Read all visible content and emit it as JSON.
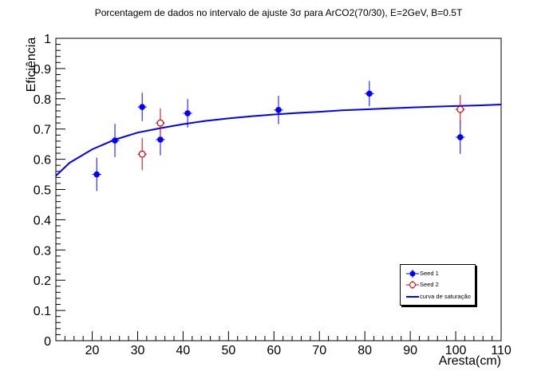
{
  "chart_data": {
    "type": "scatter",
    "title": "Porcentagem de dados no intervalo de ajuste 3σ para ArCO2(70/30), E=2GeV, B=0.5T",
    "xlabel": "Aresta(cm)",
    "ylabel": "Eficiência",
    "xlim": [
      12,
      110
    ],
    "ylim": [
      0,
      1
    ],
    "xticks": [
      20,
      30,
      40,
      50,
      60,
      70,
      80,
      90,
      100,
      110
    ],
    "yticks": [
      0,
      0.1,
      0.2,
      0.3,
      0.4,
      0.5,
      0.6,
      0.7,
      0.8,
      0.9,
      1
    ],
    "legend_position": "bottom-right",
    "series": [
      {
        "name": "Seed 1",
        "color": "#0000ff",
        "marker": "filled-circle",
        "points": [
          {
            "x": 21,
            "y": 0.55,
            "xerr": 1,
            "yerr": 0.055
          },
          {
            "x": 25,
            "y": 0.662,
            "xerr": 1,
            "yerr": 0.055
          },
          {
            "x": 31,
            "y": 0.773,
            "xerr": 1,
            "yerr": 0.047
          },
          {
            "x": 35,
            "y": 0.665,
            "xerr": 1,
            "yerr": 0.052
          },
          {
            "x": 41,
            "y": 0.752,
            "xerr": 1,
            "yerr": 0.047
          },
          {
            "x": 61,
            "y": 0.763,
            "xerr": 1,
            "yerr": 0.047
          },
          {
            "x": 81,
            "y": 0.817,
            "xerr": 1,
            "yerr": 0.042
          },
          {
            "x": 101,
            "y": 0.673,
            "xerr": 1,
            "yerr": 0.055
          }
        ]
      },
      {
        "name": "Seed 2",
        "color": "#cc0000",
        "marker": "open-circle",
        "points": [
          {
            "x": 31,
            "y": 0.617,
            "xerr": 1,
            "yerr": 0.053
          },
          {
            "x": 35,
            "y": 0.72,
            "xerr": 1,
            "yerr": 0.048
          },
          {
            "x": 101,
            "y": 0.765,
            "xerr": 1,
            "yerr": 0.047
          }
        ]
      },
      {
        "name": "curva de saturação",
        "color": "#0000ff",
        "marker": "line",
        "x": [
          12,
          15,
          20,
          25,
          30,
          35,
          40,
          45,
          50,
          55,
          60,
          65,
          70,
          75,
          80,
          85,
          90,
          95,
          100,
          105,
          110
        ],
        "y": [
          0.545,
          0.588,
          0.633,
          0.665,
          0.688,
          0.703,
          0.716,
          0.727,
          0.735,
          0.742,
          0.748,
          0.753,
          0.757,
          0.762,
          0.765,
          0.768,
          0.771,
          0.774,
          0.776,
          0.778,
          0.781
        ]
      }
    ]
  }
}
